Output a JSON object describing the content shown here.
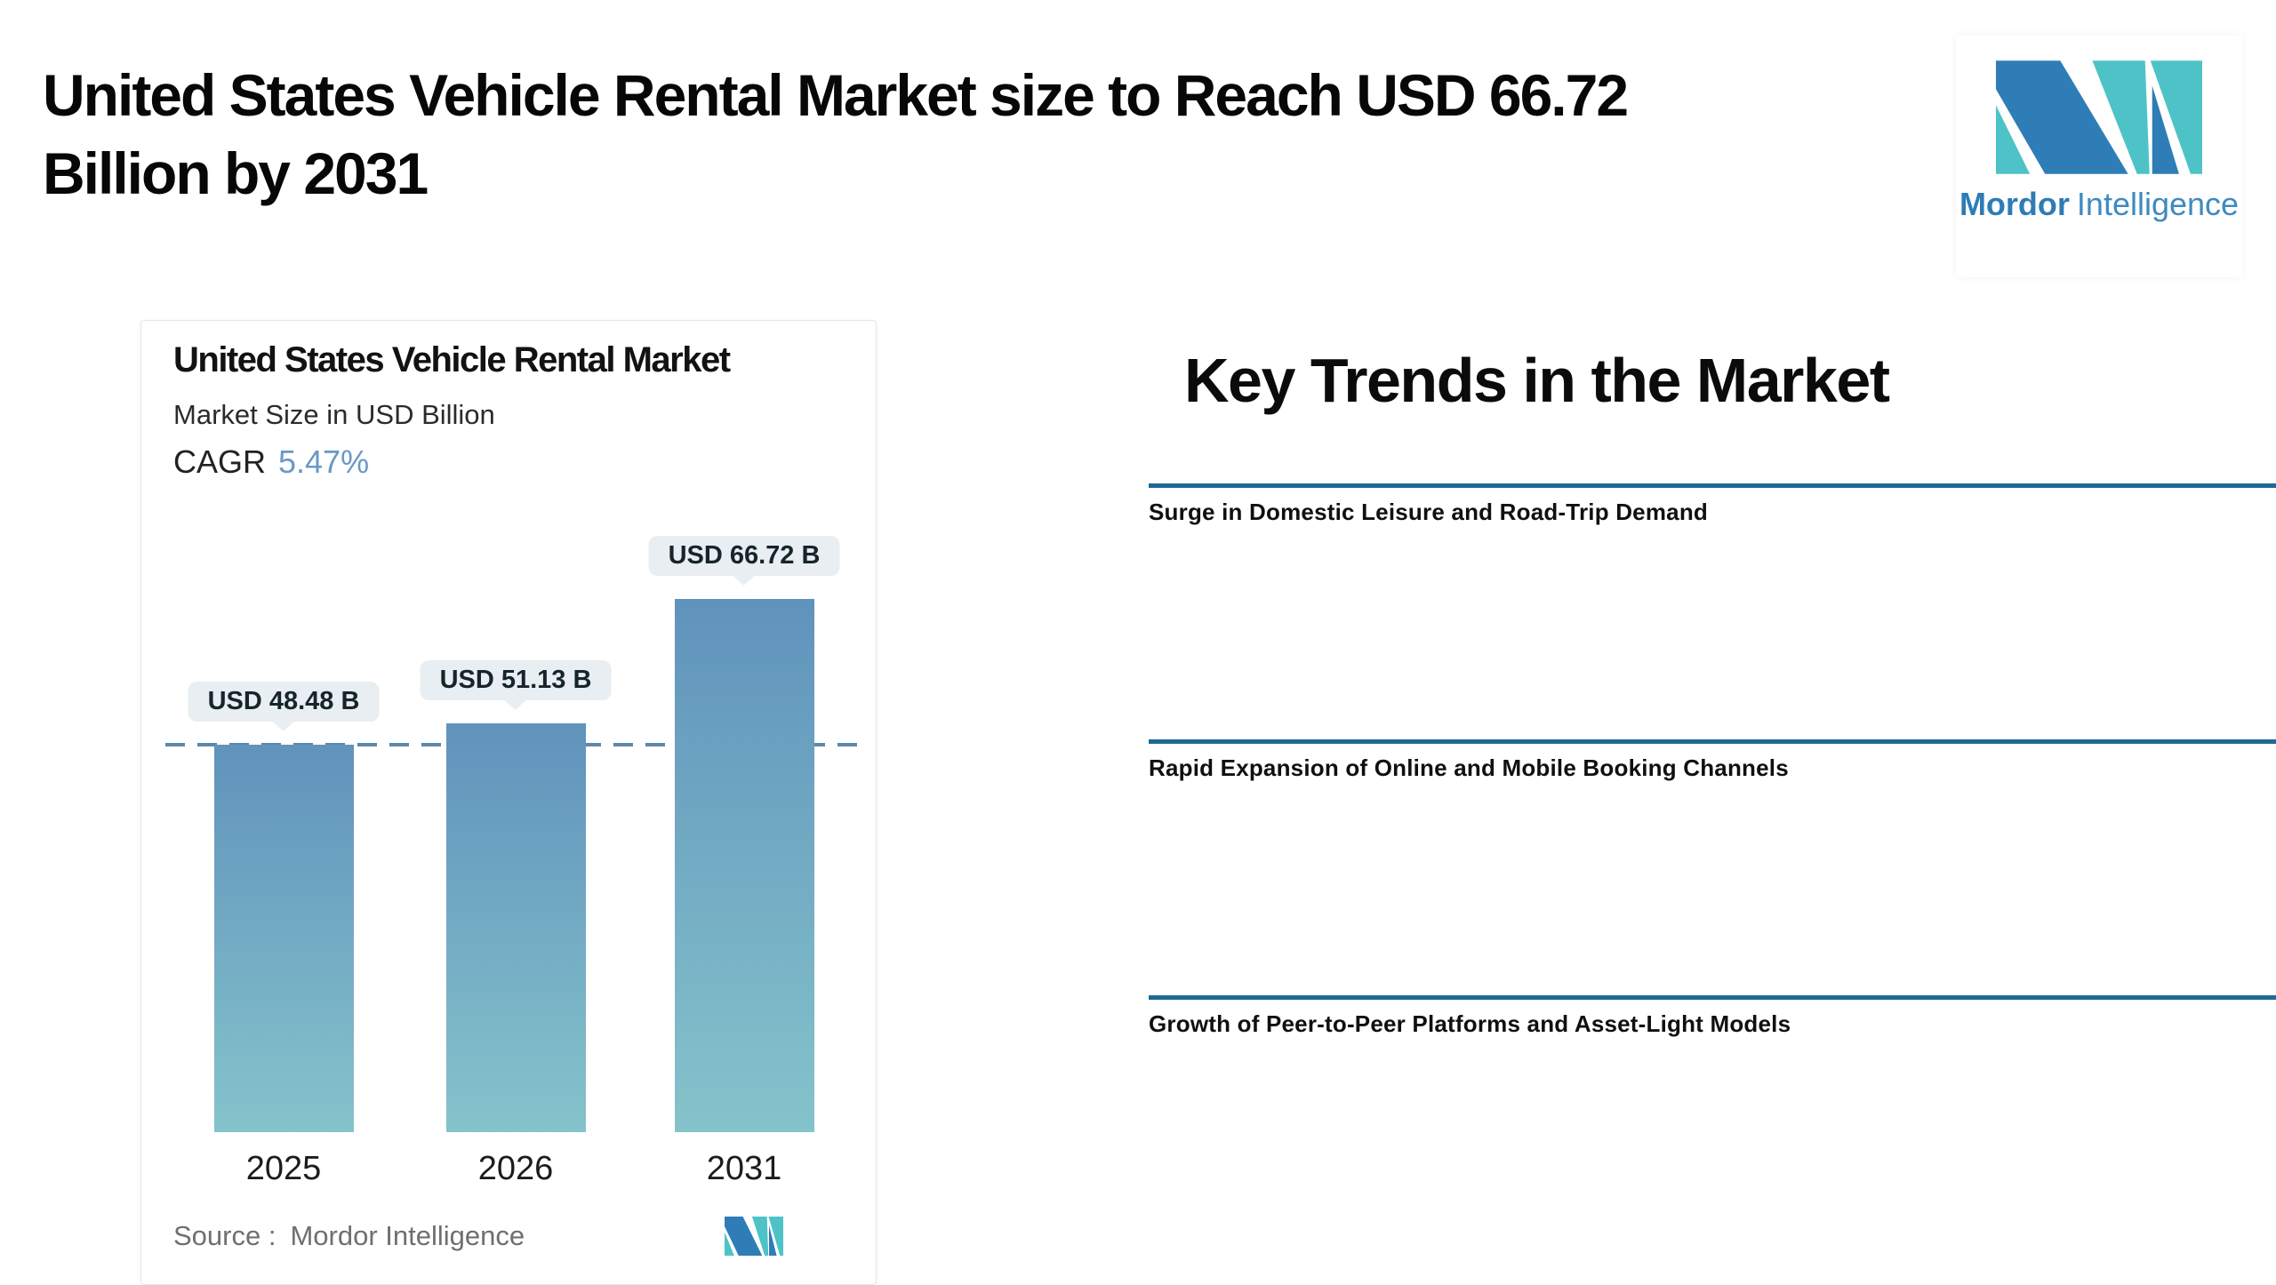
{
  "page": {
    "title_lines": [
      "United States Vehicle Rental Market size to Reach USD 66.72",
      "Billion by 2031"
    ]
  },
  "logo": {
    "brand_bold": "Mordor",
    "brand_regular": "Intelligence",
    "blue": "#2e7db6",
    "teal": "#4ec3c7",
    "word_bold_color": "#2d7cb5",
    "word_regular_color": "#3e8ac1"
  },
  "chart_card": {
    "title": "United States Vehicle Rental Market",
    "subtitle": "Market Size in USD Billion",
    "cagr_label": "CAGR",
    "cagr_value": "5.47%",
    "source_label": "Source :",
    "source_value": "Mordor Intelligence"
  },
  "chart_data": {
    "type": "bar",
    "title": "United States Vehicle Rental Market",
    "subtitle": "Market Size in USD Billion",
    "cagr": "5.47%",
    "categories": [
      "2025",
      "2026",
      "2031"
    ],
    "values": [
      48.48,
      51.13,
      66.72
    ],
    "unit": "USD Billion",
    "bar_labels": [
      "USD 48.48 B",
      "USD 51.13 B",
      "USD 66.72 B"
    ],
    "reference_line_value": 48.48,
    "ylim": [
      0,
      66.72
    ],
    "grid": false,
    "legend": "none",
    "colors": {
      "bar_gradient_top": "#6093bc",
      "bar_gradient_bottom": "#85c3cb",
      "dashed_line": "#5c88ac",
      "label_background": "#e8eef1",
      "accent_blue": "#6899c6"
    }
  },
  "trends": {
    "heading": "Key Trends in the Market",
    "rule_color": "#1f6896",
    "items": [
      {
        "title": "Surge in Domestic Leisure and Road-Trip Demand"
      },
      {
        "title": "Rapid Expansion of Online and Mobile Booking Channels"
      },
      {
        "title": "Growth of Peer-to-Peer Platforms and Asset-Light Models"
      }
    ]
  }
}
